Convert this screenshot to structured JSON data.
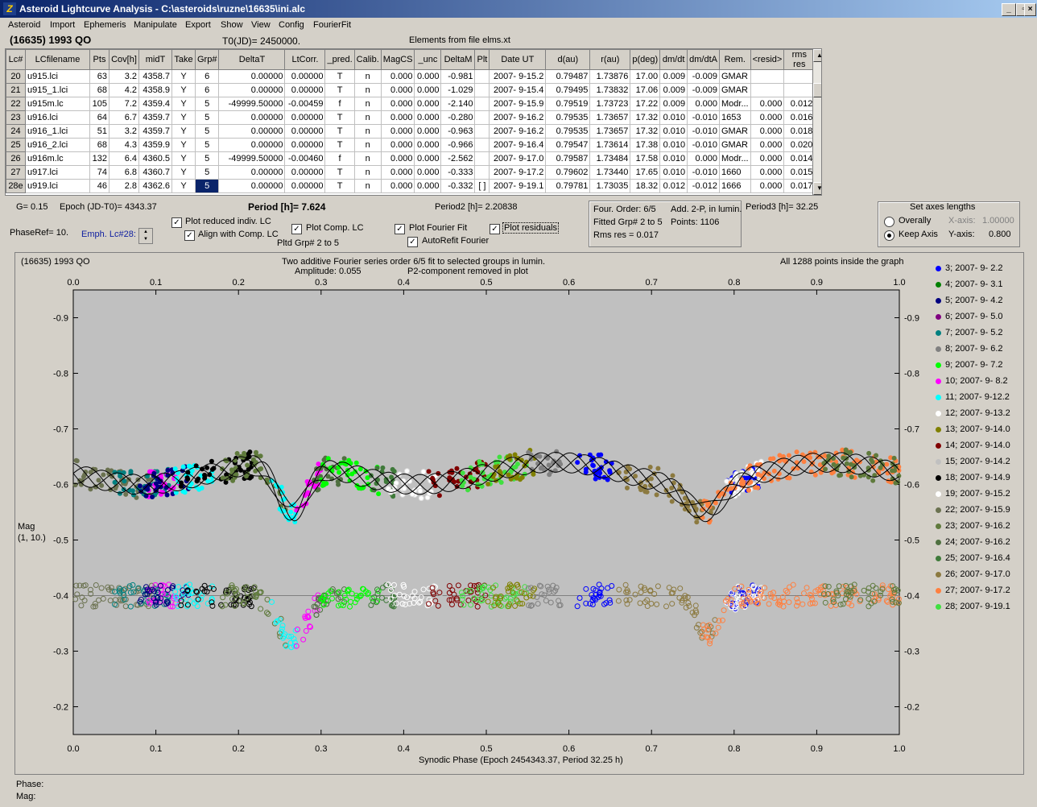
{
  "window": {
    "title": "Asteroid Lightcurve Analysis - C:\\asteroids\\ruzne\\16635\\ini.alc",
    "app_icon": "Z-logo-icon"
  },
  "menu": [
    "Asteroid",
    "Import",
    "Ephemeris",
    "Manipulate",
    "Export",
    "Show",
    "View",
    "Config",
    "FourierFit"
  ],
  "header": {
    "asteroid": "(16635) 1993 QO",
    "t0": "T0(JD)= 2450000.",
    "elements": "Elements from file elms.xt"
  },
  "table": {
    "columns": [
      "Lc#",
      "LCfilename",
      "Pts",
      "Cov[h]",
      "midT",
      "Take",
      "Grp#",
      "DeltaT",
      "LtCorr.",
      "_pred.",
      "Calib.",
      "MagCS",
      "_unc",
      "DeltaM",
      "Plt",
      "Date UT",
      "d(au)",
      "r(au)",
      "p(deg)",
      "dm/dt",
      "dm/dtA",
      "Rem.",
      "<resid>",
      "rms res"
    ],
    "rows": [
      [
        "20",
        "u915.lci",
        "63",
        "3.2",
        "4358.7",
        "Y",
        "6",
        "0.00000",
        "0.00000",
        "T",
        "n",
        "0.000",
        "0.000",
        "-0.981",
        "",
        "2007- 9-15.2",
        "0.79487",
        "1.73876",
        "17.00",
        "0.009",
        "-0.009",
        "GMAR",
        "",
        ""
      ],
      [
        "21",
        "u915_1.lci",
        "68",
        "4.2",
        "4358.9",
        "Y",
        "6",
        "0.00000",
        "0.00000",
        "T",
        "n",
        "0.000",
        "0.000",
        "-1.029",
        "",
        "2007- 9-15.4",
        "0.79495",
        "1.73832",
        "17.06",
        "0.009",
        "-0.009",
        "GMAR",
        "",
        ""
      ],
      [
        "22",
        "u915m.lc",
        "105",
        "7.2",
        "4359.4",
        "Y",
        "5",
        "-49999.50000",
        "-0.00459",
        "f",
        "n",
        "0.000",
        "0.000",
        "-2.140",
        "",
        "2007- 9-15.9",
        "0.79519",
        "1.73723",
        "17.22",
        "0.009",
        "0.000",
        "Modr...",
        "0.000",
        "0.012"
      ],
      [
        "23",
        "u916.lci",
        "64",
        "6.7",
        "4359.7",
        "Y",
        "5",
        "0.00000",
        "0.00000",
        "T",
        "n",
        "0.000",
        "0.000",
        "-0.280",
        "",
        "2007- 9-16.2",
        "0.79535",
        "1.73657",
        "17.32",
        "0.010",
        "-0.010",
        "1653",
        "0.000",
        "0.016"
      ],
      [
        "24",
        "u916_1.lci",
        "51",
        "3.2",
        "4359.7",
        "Y",
        "5",
        "0.00000",
        "0.00000",
        "T",
        "n",
        "0.000",
        "0.000",
        "-0.963",
        "",
        "2007- 9-16.2",
        "0.79535",
        "1.73657",
        "17.32",
        "0.010",
        "-0.010",
        "GMAR",
        "0.000",
        "0.018"
      ],
      [
        "25",
        "u916_2.lci",
        "68",
        "4.3",
        "4359.9",
        "Y",
        "5",
        "0.00000",
        "0.00000",
        "T",
        "n",
        "0.000",
        "0.000",
        "-0.966",
        "",
        "2007- 9-16.4",
        "0.79547",
        "1.73614",
        "17.38",
        "0.010",
        "-0.010",
        "GMAR",
        "0.000",
        "0.020"
      ],
      [
        "26",
        "u916m.lc",
        "132",
        "6.4",
        "4360.5",
        "Y",
        "5",
        "-49999.50000",
        "-0.00460",
        "f",
        "n",
        "0.000",
        "0.000",
        "-2.562",
        "",
        "2007- 9-17.0",
        "0.79587",
        "1.73484",
        "17.58",
        "0.010",
        "0.000",
        "Modr...",
        "0.000",
        "0.014"
      ],
      [
        "27",
        "u917.lci",
        "74",
        "6.8",
        "4360.7",
        "Y",
        "5",
        "0.00000",
        "0.00000",
        "T",
        "n",
        "0.000",
        "0.000",
        "-0.333",
        "",
        "2007- 9-17.2",
        "0.79602",
        "1.73440",
        "17.65",
        "0.010",
        "-0.010",
        "1660",
        "0.000",
        "0.015"
      ],
      [
        "28e",
        "u919.lci",
        "46",
        "2.8",
        "4362.6",
        "Y",
        "5",
        "0.00000",
        "0.00000",
        "T",
        "n",
        "0.000",
        "0.000",
        "-0.332",
        "[ ]",
        "2007- 9-19.1",
        "0.79781",
        "1.73035",
        "18.32",
        "0.012",
        "-0.012",
        "1666",
        "0.000",
        "0.017"
      ]
    ]
  },
  "info": {
    "g": "G= 0.15",
    "epoch": "Epoch (JD-T0)= 4343.37",
    "period": "Period [h]= 7.624",
    "period2": "Period2 [h]= 2.20838",
    "phaseref": "PhaseRef= 10.",
    "emph": "Emph. Lc#28:",
    "pltd": "Pltd Grp#  2  to  5",
    "four_order": "Four. Order:  6/5",
    "add2p": "Add. 2-P, in lumin.",
    "fitted": "Fitted Grp# 2 to 5",
    "points": "Points: 1106",
    "rms": "Rms res     = 0.017",
    "period3": "Period3 [h]= 32.25"
  },
  "checkboxes": {
    "plot_reduced": {
      "label": "Plot reduced indiv. LC",
      "checked": true
    },
    "align_comp": {
      "label": "Align with Comp. LC",
      "checked": true
    },
    "plot_comp": {
      "label": "Plot Comp. LC",
      "checked": true
    },
    "plot_fourier": {
      "label": "Plot Fourier Fit",
      "checked": true
    },
    "autorefit": {
      "label": "AutoRefit Fourier",
      "checked": true
    },
    "plot_resid": {
      "label": "Plot residuals",
      "checked": true
    }
  },
  "axes_box": {
    "title": "Set axes lengths",
    "overally": "Overally",
    "keep": "Keep Axis",
    "xaxis_label": "X-axis:",
    "xaxis_val": "1.00000",
    "yaxis_label": "Y-axis:",
    "yaxis_val": "0.800",
    "selected": "keep"
  },
  "status": {
    "phase": "Phase:",
    "mag": "Mag:"
  },
  "chart_data": {
    "type": "scatter",
    "title": "Two additive Fourier series order 6/5 fit to selected groups in lumin.",
    "subtitle1": "Amplitude: 0.055",
    "subtitle2": "P2-component removed in plot",
    "left_title": "(16635) 1993 QO",
    "right_note": "All 1288 points inside the graph",
    "xlabel": "Synodic Phase (Epoch 2454343.37, Period 32.25 h)",
    "ylabel": "Mag",
    "ylabel2": "(1, 10.)",
    "xlim": [
      0.0,
      1.0
    ],
    "ylim": [
      -0.15,
      -0.95
    ],
    "xticks": [
      "0.0",
      "0.1",
      "0.2",
      "0.3",
      "0.4",
      "0.5",
      "0.6",
      "0.7",
      "0.8",
      "0.9",
      "1.0"
    ],
    "yticks": [
      "-0.9",
      "-0.8",
      "-0.7",
      "-0.6",
      "-0.5",
      "-0.4",
      "-0.3",
      "-0.2"
    ],
    "series": [
      {
        "name": "3; 2007- 9- 2.2",
        "color": "#0000ff"
      },
      {
        "name": "4; 2007- 9- 3.1",
        "color": "#008000"
      },
      {
        "name": "5; 2007- 9- 4.2",
        "color": "#00007f"
      },
      {
        "name": "6; 2007- 9- 5.0",
        "color": "#800080"
      },
      {
        "name": "7; 2007- 9- 5.2",
        "color": "#008080"
      },
      {
        "name": "8; 2007- 9- 6.2",
        "color": "#808080"
      },
      {
        "name": "9; 2007- 9- 7.2",
        "color": "#00ff00"
      },
      {
        "name": "10; 2007- 9- 8.2",
        "color": "#ff00ff"
      },
      {
        "name": "11; 2007- 9-12.2",
        "color": "#00ffff"
      },
      {
        "name": "12; 2007- 9-13.2",
        "color": "#ffffff"
      },
      {
        "name": "13; 2007- 9-14.0",
        "color": "#808000"
      },
      {
        "name": "14; 2007- 9-14.0",
        "color": "#800000"
      },
      {
        "name": "15; 2007- 9-14.2",
        "color": "#c0c0c0"
      },
      {
        "name": "18; 2007- 9-14.9",
        "color": "#000000"
      },
      {
        "name": "19; 2007- 9-15.2",
        "color": "#ffffff"
      },
      {
        "name": "22; 2007- 9-15.9",
        "color": "#6b7250"
      },
      {
        "name": "23; 2007- 9-16.2",
        "color": "#5f7a3c"
      },
      {
        "name": "24; 2007- 9-16.2",
        "color": "#4f7040"
      },
      {
        "name": "25; 2007- 9-16.4",
        "color": "#3f7a3a"
      },
      {
        "name": "26; 2007- 9-17.0",
        "color": "#8c7a40"
      },
      {
        "name": "27; 2007- 9-17.2",
        "color": "#ff8040"
      },
      {
        "name": "28; 2007- 9-19.1",
        "color": "#40e040"
      }
    ],
    "phase_segments": [
      {
        "series": 15,
        "x": [
          0.0,
          0.1
        ]
      },
      {
        "series": 4,
        "x": [
          0.05,
          0.12
        ]
      },
      {
        "series": 7,
        "x": [
          0.09,
          0.13
        ]
      },
      {
        "series": 2,
        "x": [
          0.08,
          0.14
        ]
      },
      {
        "series": 8,
        "x": [
          0.12,
          0.17
        ]
      },
      {
        "series": 13,
        "x": [
          0.13,
          0.22
        ]
      },
      {
        "series": 16,
        "x": [
          0.18,
          0.26
        ]
      },
      {
        "series": 8,
        "x": [
          0.24,
          0.27
        ]
      },
      {
        "series": 7,
        "x": [
          0.27,
          0.3
        ]
      },
      {
        "series": 17,
        "x": [
          0.29,
          0.33
        ]
      },
      {
        "series": 6,
        "x": [
          0.3,
          0.37
        ]
      },
      {
        "series": 18,
        "x": [
          0.36,
          0.39
        ]
      },
      {
        "series": 9,
        "x": [
          0.38,
          0.44
        ]
      },
      {
        "series": 12,
        "x": [
          0.44,
          0.49
        ]
      },
      {
        "series": 11,
        "x": [
          0.43,
          0.5
        ]
      },
      {
        "series": 21,
        "x": [
          0.47,
          0.55
        ]
      },
      {
        "series": 10,
        "x": [
          0.5,
          0.56
        ]
      },
      {
        "series": 5,
        "x": [
          0.55,
          0.59
        ]
      },
      {
        "series": 0,
        "x": [
          0.61,
          0.66
        ]
      },
      {
        "series": 19,
        "x": [
          0.66,
          0.78
        ]
      },
      {
        "series": 0,
        "x": [
          0.79,
          0.83
        ]
      },
      {
        "series": 9,
        "x": [
          0.79,
          0.84
        ]
      },
      {
        "series": 20,
        "x": [
          0.76,
          0.86
        ]
      },
      {
        "series": 20,
        "x": [
          0.86,
          1.0
        ]
      },
      {
        "series": 16,
        "x": [
          0.9,
          1.0
        ]
      }
    ],
    "reference_line": -0.4
  }
}
